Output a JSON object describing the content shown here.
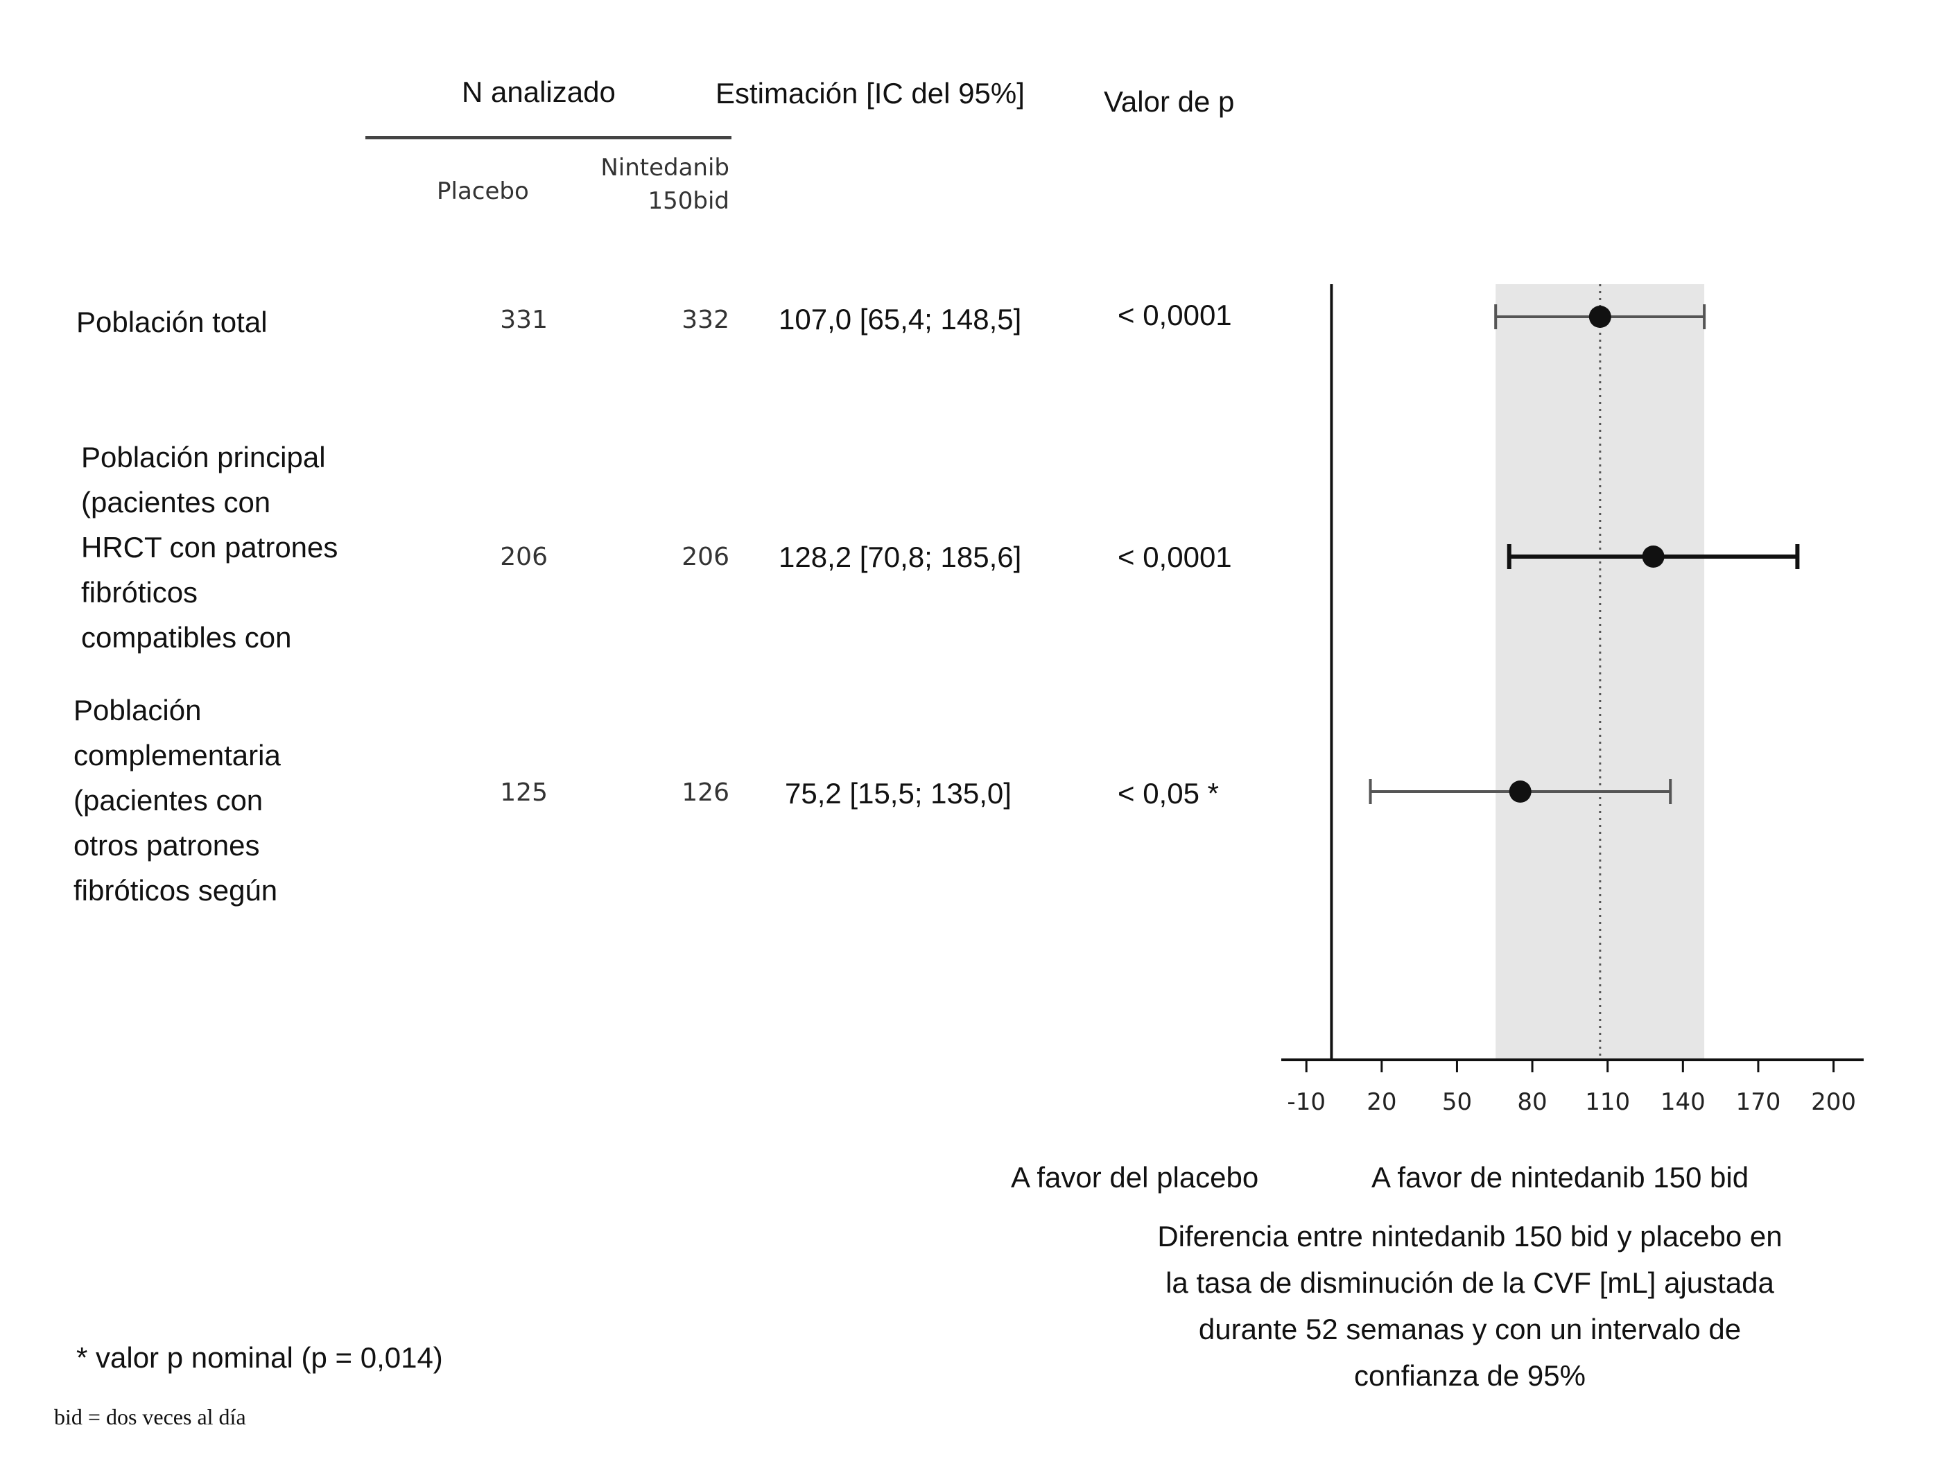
{
  "headers": {
    "n_analyzed": "N analizado",
    "estimate": "Estimación [IC del 95%]",
    "p_value": "Valor de p",
    "placebo": "Placebo",
    "nintedanib_line1": "Nintedanib",
    "nintedanib_line2": "150bid"
  },
  "rows": [
    {
      "label_lines": [
        "Población total"
      ],
      "n_placebo": "331",
      "n_nintedanib": "332",
      "estimate_text": "107,0 [65,4; 148,5]",
      "p_text": "< 0,0001"
    },
    {
      "label_lines": [
        "Población principal",
        "(pacientes con",
        "HRCT con patrones",
        "fibróticos",
        "compatibles con"
      ],
      "n_placebo": "206",
      "n_nintedanib": "206",
      "estimate_text": "128,2 [70,8; 185,6]",
      "p_text": "< 0,0001"
    },
    {
      "label_lines": [
        "Población",
        "complementaria",
        "(pacientes con",
        "otros patrones",
        "fibróticos según"
      ],
      "n_placebo": "125",
      "n_nintedanib": "126",
      "estimate_text": "75,2 [15,5; 135,0]",
      "p_text": "< 0,05 *"
    }
  ],
  "chart_data": {
    "type": "scatter",
    "subtype": "forest",
    "series": [
      {
        "points": [
          {
            "estimate": 107.0,
            "ci_low": 65.4,
            "ci_high": 148.5
          },
          {
            "estimate": 128.2,
            "ci_low": 70.8,
            "ci_high": 185.6
          },
          {
            "estimate": 75.2,
            "ci_low": 15.5,
            "ci_high": 135.0
          }
        ]
      }
    ],
    "xlim": [
      -20,
      212
    ],
    "xticks": [
      -10,
      20,
      50,
      80,
      110,
      140,
      170,
      200
    ],
    "xtick_labels": [
      "-10",
      "20",
      "50",
      "80",
      "110",
      "140",
      "170",
      "200"
    ],
    "reference_line": 107.0,
    "shaded_band": [
      65.4,
      148.5
    ],
    "left_label": "A favor del placebo",
    "right_label": "A favor de nintedanib 150 bid",
    "xlabel_lines": [
      "Diferencia entre nintedanib 150 bid y placebo en",
      "la tasa de disminución de la CVF [mL] ajustada",
      "durante 52 semanas y con un intervalo de",
      "confianza de 95%"
    ],
    "grid": false,
    "colors": {
      "band": "#e6e6e6",
      "marker": "#111111",
      "ci_line_main": "#111111",
      "ci_line_other": "#555555"
    }
  },
  "footnotes": {
    "nominal_p": "* valor p nominal (p = 0,014)",
    "bid_def": "bid = dos veces al día"
  }
}
